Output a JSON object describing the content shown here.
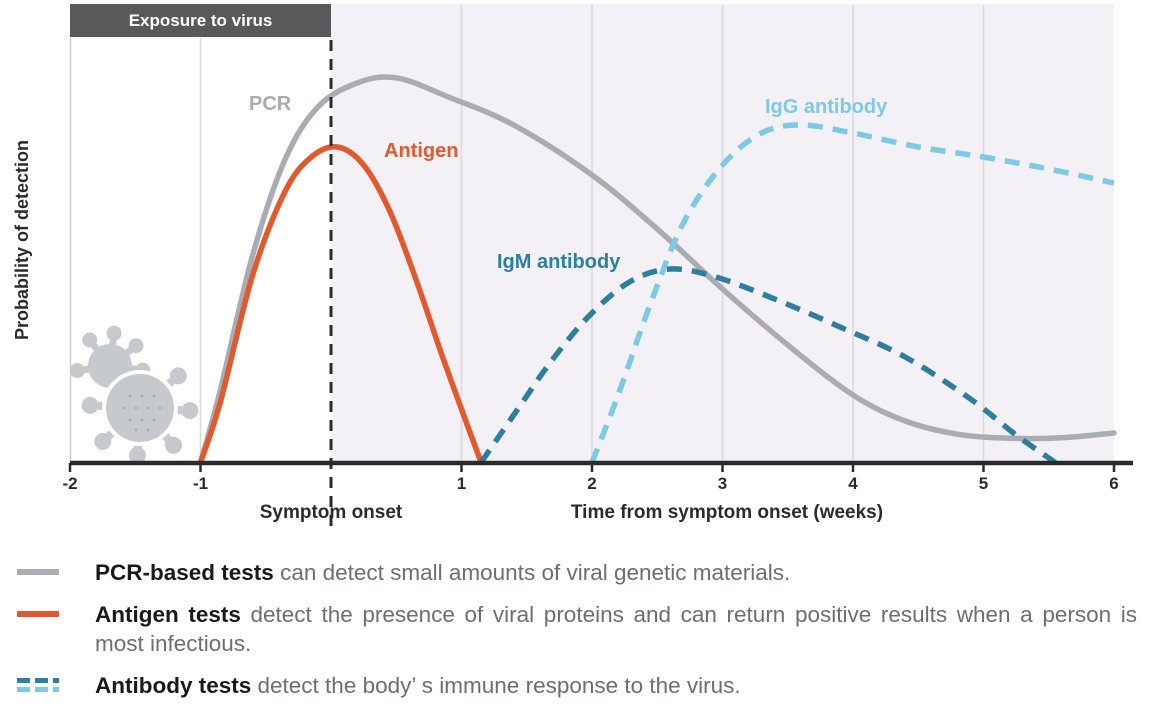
{
  "banner": {
    "label": "Exposure to virus"
  },
  "y_axis": {
    "label": "Probability of detection"
  },
  "x_axis": {
    "symptom_onset_label": "Symptom onset",
    "title": "Time from symptom onset (weeks)"
  },
  "chart_data": {
    "type": "line",
    "xlabel": "Time from symptom onset (weeks)",
    "ylabel": "Probability of detection",
    "x_unit": "weeks",
    "x_range": [
      -2,
      6
    ],
    "y_range": [
      0,
      1
    ],
    "y_tick_labels_shown": false,
    "x_ticks": [
      {
        "week": -2,
        "label": "-2"
      },
      {
        "week": -1,
        "label": "-1"
      },
      {
        "week": 1,
        "label": "1"
      },
      {
        "week": 2,
        "label": "2"
      },
      {
        "week": 3,
        "label": "3"
      },
      {
        "week": 4,
        "label": "4"
      },
      {
        "week": 5,
        "label": "5"
      },
      {
        "week": 6,
        "label": "6"
      }
    ],
    "gridline_weeks": [
      -1,
      1,
      2,
      3,
      4,
      5
    ],
    "shaded_region_weeks": [
      0,
      6
    ],
    "symptom_onset_week": 0,
    "exposure_region_weeks": [
      -2,
      0
    ],
    "legend_position": "inline-labels",
    "series": [
      {
        "name": "PCR",
        "label": "PCR",
        "color": "#a7adb2",
        "style": "solid",
        "points": [
          [
            -1,
            0
          ],
          [
            -0.85,
            0.18
          ],
          [
            -0.6,
            0.52
          ],
          [
            -0.35,
            0.76
          ],
          [
            -0.1,
            0.89
          ],
          [
            0.2,
            0.95
          ],
          [
            0.5,
            0.963
          ],
          [
            0.9,
            0.915
          ],
          [
            1.4,
            0.845
          ],
          [
            2,
            0.72
          ],
          [
            2.5,
            0.585
          ],
          [
            3,
            0.435
          ],
          [
            3.5,
            0.295
          ],
          [
            4,
            0.17
          ],
          [
            4.4,
            0.105
          ],
          [
            4.8,
            0.072
          ],
          [
            5.2,
            0.062
          ],
          [
            5.6,
            0.063
          ],
          [
            6,
            0.075
          ]
        ]
      },
      {
        "name": "Antigen",
        "label": "Antigen",
        "color": "#e2592e",
        "style": "solid",
        "points": [
          [
            -1,
            0
          ],
          [
            -0.85,
            0.15
          ],
          [
            -0.6,
            0.47
          ],
          [
            -0.35,
            0.68
          ],
          [
            -0.15,
            0.765
          ],
          [
            0.05,
            0.79
          ],
          [
            0.25,
            0.745
          ],
          [
            0.45,
            0.63
          ],
          [
            0.65,
            0.46
          ],
          [
            0.85,
            0.27
          ],
          [
            1.05,
            0.09
          ],
          [
            1.15,
            0
          ]
        ]
      },
      {
        "name": "IgM antibody",
        "label": "IgM antibody",
        "color": "#2e7f9e",
        "style": "dashed",
        "points": [
          [
            1.15,
            0
          ],
          [
            1.4,
            0.12
          ],
          [
            1.7,
            0.26
          ],
          [
            2,
            0.375
          ],
          [
            2.3,
            0.455
          ],
          [
            2.6,
            0.485
          ],
          [
            2.95,
            0.465
          ],
          [
            3.4,
            0.41
          ],
          [
            3.9,
            0.34
          ],
          [
            4.4,
            0.265
          ],
          [
            4.9,
            0.16
          ],
          [
            5.25,
            0.07
          ],
          [
            5.55,
            0
          ]
        ]
      },
      {
        "name": "IgG antibody",
        "label": "IgG antibody",
        "color": "#7ec9e3",
        "style": "dashed",
        "points": [
          [
            2,
            0
          ],
          [
            2.2,
            0.17
          ],
          [
            2.45,
            0.4
          ],
          [
            2.7,
            0.6
          ],
          [
            3,
            0.745
          ],
          [
            3.3,
            0.825
          ],
          [
            3.6,
            0.845
          ],
          [
            4,
            0.825
          ],
          [
            4.5,
            0.79
          ],
          [
            5,
            0.765
          ],
          [
            5.5,
            0.735
          ],
          [
            6,
            0.7
          ]
        ]
      }
    ]
  },
  "legend": [
    {
      "term": "PCR-based tests",
      "rest": " can detect small amounts of viral genetic materials.",
      "swatch": "solid-gray"
    },
    {
      "term": "Antigen tests",
      "rest": " detect the presence of viral proteins and can return positive results when a person is most infectious.",
      "swatch": "solid-orange"
    },
    {
      "term": "Antibody tests",
      "rest": " detect the body’ s immune response to the virus.",
      "swatch": "dashed-teal-lightblue"
    }
  ],
  "colors": {
    "pcr": "#a7adb2",
    "antigen": "#e2592e",
    "igm": "#2e7f9e",
    "igg": "#7ec9e3",
    "banner_bg": "#58595b",
    "shaded_region": "#f3f1f5",
    "gridline": "#dadade",
    "axis": "#2b2b2b",
    "legend_text": "#6b6f72",
    "virus_icon": "#c6cace"
  }
}
